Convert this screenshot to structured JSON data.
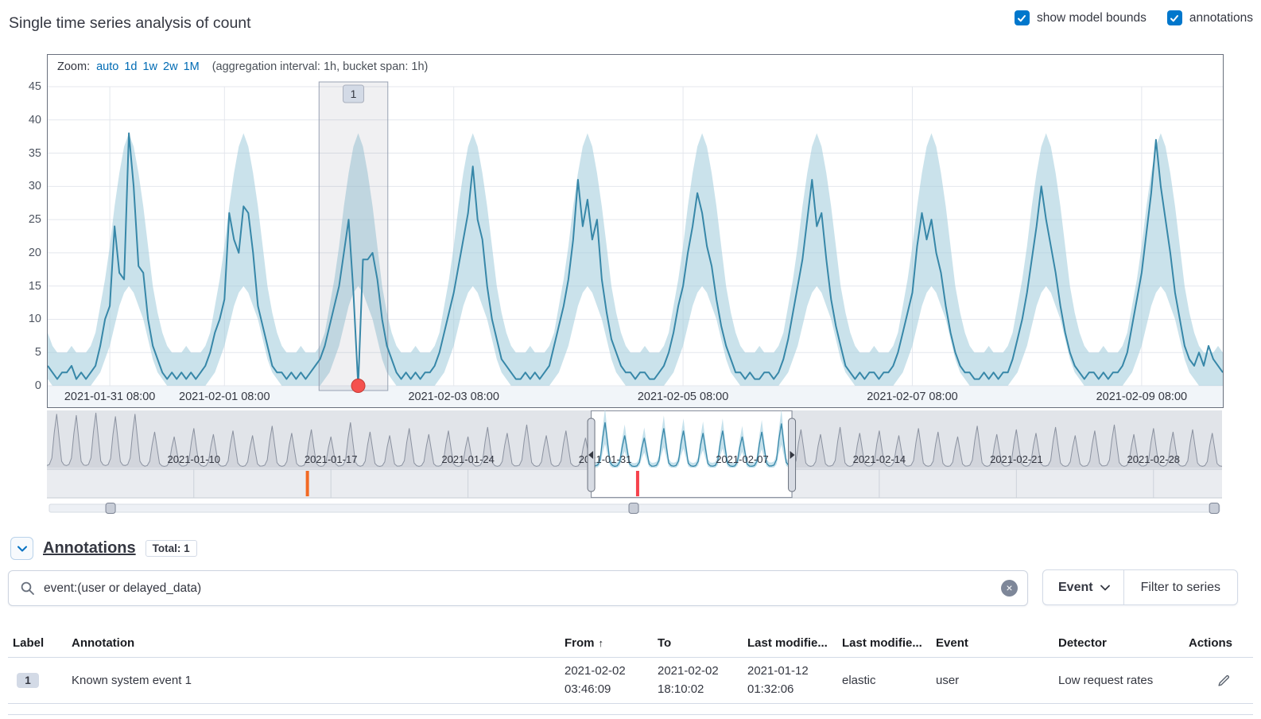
{
  "page": {
    "title": "Single time series analysis of count",
    "controls": {
      "show_model_bounds": {
        "label": "show model bounds",
        "checked": true
      },
      "annotations": {
        "label": "annotations",
        "checked": true
      }
    }
  },
  "zoom_bar": {
    "label": "Zoom:",
    "options": [
      "auto",
      "1d",
      "1w",
      "2w",
      "1M"
    ],
    "note": "(aggregation interval: 1h, bucket span: 1h)"
  },
  "chart_data": [
    {
      "type": "line",
      "name": "single-metric-timeseries",
      "title": "Single time series analysis of count",
      "ylim": [
        0,
        45
      ],
      "yticks": [
        0,
        5,
        10,
        15,
        20,
        25,
        30,
        35,
        40,
        45
      ],
      "x_start": "2021-01-30 19:00",
      "x_end": "2021-02-10 01:00",
      "hours_total": 246,
      "aggregation_interval": "1h",
      "bucket_span": "1h",
      "xticks": [
        {
          "label": "2021-01-31 08:00",
          "hour": 13
        },
        {
          "label": "2021-02-01 08:00",
          "hour": 37
        },
        {
          "label": "2021-02-03 08:00",
          "hour": 85
        },
        {
          "label": "2021-02-05 08:00",
          "hour": 133
        },
        {
          "label": "2021-02-07 08:00",
          "hour": 181
        },
        {
          "label": "2021-02-09 08:00",
          "hour": 229
        }
      ],
      "series": [
        {
          "name": "count",
          "values": [
            3,
            2,
            1,
            2,
            2,
            3,
            1,
            2,
            1,
            2,
            3,
            6,
            10,
            12,
            24,
            17,
            16,
            38,
            30,
            18,
            17,
            10,
            6,
            4,
            2,
            1,
            2,
            1,
            2,
            1,
            2,
            1,
            2,
            3,
            5,
            8,
            10,
            13,
            26,
            22,
            20,
            27,
            26,
            20,
            12,
            9,
            6,
            3,
            2,
            2,
            1,
            2,
            1,
            2,
            1,
            2,
            3,
            4,
            6,
            9,
            12,
            15,
            20,
            25,
            14,
            0,
            19,
            19,
            20,
            16,
            10,
            6,
            4,
            2,
            1,
            2,
            1,
            2,
            1,
            2,
            2,
            3,
            5,
            8,
            11,
            14,
            18,
            22,
            26,
            33,
            25,
            22,
            15,
            10,
            7,
            4,
            3,
            2,
            1,
            1,
            2,
            1,
            2,
            1,
            2,
            3,
            6,
            9,
            12,
            16,
            22,
            31,
            24,
            28,
            22,
            25,
            16,
            11,
            7,
            5,
            3,
            2,
            2,
            1,
            2,
            2,
            1,
            1,
            2,
            3,
            5,
            8,
            12,
            15,
            20,
            24,
            29,
            26,
            21,
            18,
            13,
            9,
            6,
            4,
            2,
            2,
            1,
            2,
            1,
            1,
            2,
            2,
            1,
            2,
            4,
            7,
            11,
            15,
            19,
            25,
            31,
            24,
            26,
            19,
            13,
            9,
            6,
            3,
            2,
            1,
            2,
            1,
            2,
            2,
            1,
            2,
            2,
            3,
            5,
            8,
            11,
            14,
            21,
            26,
            22,
            25,
            20,
            17,
            12,
            8,
            5,
            3,
            2,
            2,
            1,
            1,
            2,
            1,
            2,
            1,
            2,
            2,
            4,
            7,
            10,
            14,
            19,
            24,
            30,
            25,
            21,
            17,
            12,
            8,
            5,
            3,
            2,
            1,
            2,
            2,
            1,
            2,
            1,
            2,
            2,
            3,
            5,
            9,
            13,
            17,
            23,
            29,
            37,
            30,
            25,
            20,
            14,
            10,
            6,
            4,
            3,
            5,
            3,
            6,
            4,
            3,
            2
          ]
        }
      ],
      "model_bounds": {
        "start_hour_of_day": 19,
        "upper_by_hour": [
          6,
          5,
          5,
          5,
          6,
          8,
          12,
          16,
          21,
          27,
          32,
          36,
          38,
          36,
          32,
          27,
          21,
          15,
          11,
          8,
          6,
          5,
          5,
          5
        ],
        "lower_by_hour": [
          0,
          0,
          0,
          0,
          0,
          1,
          2,
          4,
          6,
          9,
          12,
          14,
          15,
          14,
          12,
          10,
          7,
          4,
          2,
          1,
          0,
          0,
          0,
          0
        ]
      },
      "annotation_region": {
        "label": "1",
        "from_hour": 56.8,
        "to_hour": 71.2
      },
      "anomaly_markers": [
        {
          "hour": 65,
          "value": 0,
          "color": "#f5514e"
        }
      ],
      "colors": {
        "line": "#3787a8",
        "model_bounds_fill": "#9fcadb",
        "grid": "#e4e7ed",
        "anomaly": "#f5514e"
      }
    },
    {
      "type": "area",
      "name": "context-overview",
      "x_start": "2021-01-03",
      "days_total": 60,
      "xticks": [
        {
          "label": "2021-01-10",
          "day": 7
        },
        {
          "label": "2021-01-17",
          "day": 14
        },
        {
          "label": "2021-01-24",
          "day": 21
        },
        {
          "label": "2021-01-31",
          "day": 28
        },
        {
          "label": "2021-02-07",
          "day": 35
        },
        {
          "label": "2021-02-14",
          "day": 42
        },
        {
          "label": "2021-02-21",
          "day": 49
        },
        {
          "label": "2021-02-28",
          "day": 56
        }
      ],
      "day_peaks": [
        45,
        44,
        46,
        43,
        45,
        30,
        26,
        33,
        28,
        31,
        27,
        35,
        29,
        32,
        26,
        38,
        30,
        27,
        33,
        28,
        31,
        26,
        34,
        29,
        36,
        27,
        31,
        25,
        38,
        27,
        25,
        33,
        31,
        29,
        31,
        26,
        30,
        37,
        32,
        28,
        34,
        29,
        31,
        27,
        33,
        30,
        26,
        35,
        28,
        32,
        29,
        34,
        27,
        31,
        36,
        28,
        33,
        30,
        32,
        29
      ],
      "intraday_profile_hours": [
        0,
        3,
        6,
        9,
        12,
        15,
        18,
        21
      ],
      "intraday_profile": [
        0.04,
        0.06,
        0.18,
        0.65,
        1.0,
        0.55,
        0.12,
        0.05
      ],
      "selection": {
        "from_day": 27.79,
        "to_day": 38.04
      },
      "annotation_markers": [
        {
          "day": 13.3,
          "color": "#f26a24"
        },
        {
          "day": 30.16,
          "color": "#f6424c"
        }
      ],
      "slider_knob_days": [
        3.25,
        29.96,
        59.6
      ],
      "colors": {
        "context_line": "#8b92a0",
        "context_fill": "#c9cdd5",
        "selected_line": "#3787a8",
        "selected_fill": "#b7d9e7",
        "outside_bg": "#e1e4e9"
      }
    }
  ],
  "annotations_section": {
    "heading": "Annotations",
    "total_badge": "Total: 1",
    "search_value": "event:(user or delayed_data)",
    "event_button": "Event",
    "filter_button": "Filter to series"
  },
  "table": {
    "columns": [
      "Label",
      "Annotation",
      "From",
      "To",
      "Last modifie...",
      "Last modifie...",
      "Event",
      "Detector",
      "Actions"
    ],
    "sort": {
      "column": "From",
      "direction": "ascending"
    },
    "rows": [
      {
        "label": "1",
        "annotation": "Known system event 1",
        "from": "2021-02-02\n03:46:09",
        "to": "2021-02-02\n18:10:02",
        "last_modified_date": "2021-01-12\n01:32:06",
        "last_modified_by": "elastic",
        "event": "user",
        "detector": "Low request rates"
      }
    ]
  }
}
